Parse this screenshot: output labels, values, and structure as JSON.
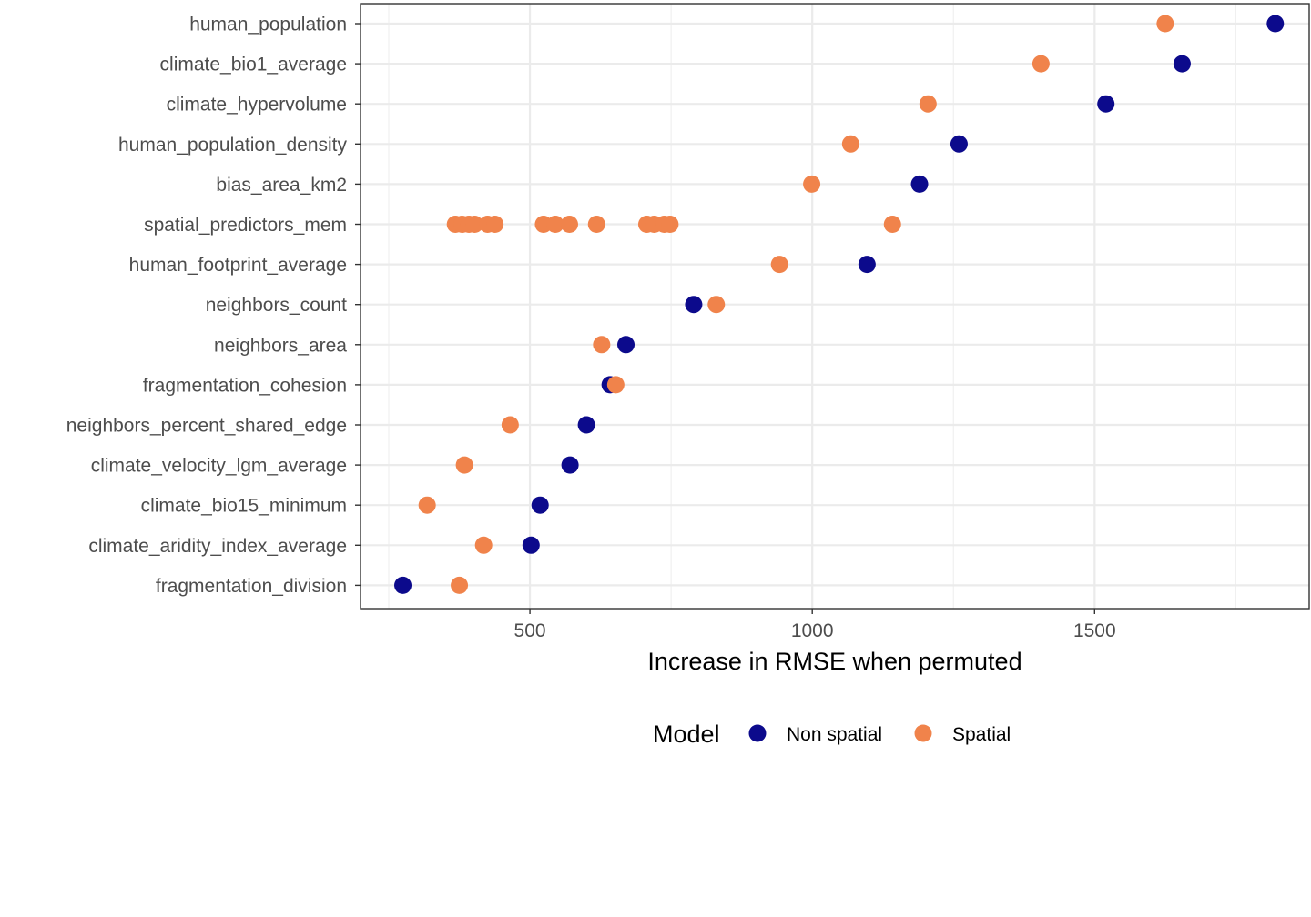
{
  "chart_data": {
    "type": "scatter",
    "title": "",
    "xlabel": "Increase in RMSE when permuted",
    "ylabel": "",
    "xlim": [
      200,
      1880
    ],
    "xticks": [
      500,
      1000,
      1500
    ],
    "grid": true,
    "legend_position": "bottom",
    "legend_title": "Model",
    "categories": [
      "human_population",
      "climate_bio1_average",
      "climate_hypervolume",
      "human_population_density",
      "bias_area_km2",
      "spatial_predictors_mem",
      "human_footprint_average",
      "neighbors_count",
      "neighbors_area",
      "fragmentation_cohesion",
      "neighbors_percent_shared_edge",
      "climate_velocity_lgm_average",
      "climate_bio15_minimum",
      "climate_aridity_index_average",
      "fragmentation_division"
    ],
    "series": [
      {
        "name": "Non spatial",
        "color": "#0c0a8c",
        "points": [
          {
            "y": "human_population",
            "x": 1820
          },
          {
            "y": "climate_bio1_average",
            "x": 1655
          },
          {
            "y": "climate_hypervolume",
            "x": 1520
          },
          {
            "y": "human_population_density",
            "x": 1260
          },
          {
            "y": "bias_area_km2",
            "x": 1190
          },
          {
            "y": "human_footprint_average",
            "x": 1097
          },
          {
            "y": "neighbors_count",
            "x": 790
          },
          {
            "y": "neighbors_area",
            "x": 670
          },
          {
            "y": "fragmentation_cohesion",
            "x": 642
          },
          {
            "y": "neighbors_percent_shared_edge",
            "x": 600
          },
          {
            "y": "climate_velocity_lgm_average",
            "x": 571
          },
          {
            "y": "climate_bio15_minimum",
            "x": 518
          },
          {
            "y": "climate_aridity_index_average",
            "x": 502
          },
          {
            "y": "fragmentation_division",
            "x": 275
          }
        ]
      },
      {
        "name": "Spatial",
        "color": "#f0834b",
        "points": [
          {
            "y": "human_population",
            "x": 1625
          },
          {
            "y": "climate_bio1_average",
            "x": 1405
          },
          {
            "y": "climate_hypervolume",
            "x": 1205
          },
          {
            "y": "human_population_density",
            "x": 1068
          },
          {
            "y": "bias_area_km2",
            "x": 999
          },
          {
            "y": "spatial_predictors_mem",
            "x": 1142
          },
          {
            "y": "spatial_predictors_mem",
            "x": 368
          },
          {
            "y": "spatial_predictors_mem",
            "x": 380
          },
          {
            "y": "spatial_predictors_mem",
            "x": 392
          },
          {
            "y": "spatial_predictors_mem",
            "x": 402
          },
          {
            "y": "spatial_predictors_mem",
            "x": 425
          },
          {
            "y": "spatial_predictors_mem",
            "x": 438
          },
          {
            "y": "spatial_predictors_mem",
            "x": 524
          },
          {
            "y": "spatial_predictors_mem",
            "x": 545
          },
          {
            "y": "spatial_predictors_mem",
            "x": 570
          },
          {
            "y": "spatial_predictors_mem",
            "x": 618
          },
          {
            "y": "spatial_predictors_mem",
            "x": 707
          },
          {
            "y": "spatial_predictors_mem",
            "x": 720
          },
          {
            "y": "spatial_predictors_mem",
            "x": 738
          },
          {
            "y": "spatial_predictors_mem",
            "x": 748
          },
          {
            "y": "human_footprint_average",
            "x": 942
          },
          {
            "y": "neighbors_count",
            "x": 830
          },
          {
            "y": "neighbors_area",
            "x": 627
          },
          {
            "y": "fragmentation_cohesion",
            "x": 652
          },
          {
            "y": "neighbors_percent_shared_edge",
            "x": 465
          },
          {
            "y": "climate_velocity_lgm_average",
            "x": 384
          },
          {
            "y": "climate_bio15_minimum",
            "x": 318
          },
          {
            "y": "climate_aridity_index_average",
            "x": 418
          },
          {
            "y": "fragmentation_division",
            "x": 375
          }
        ]
      }
    ]
  }
}
